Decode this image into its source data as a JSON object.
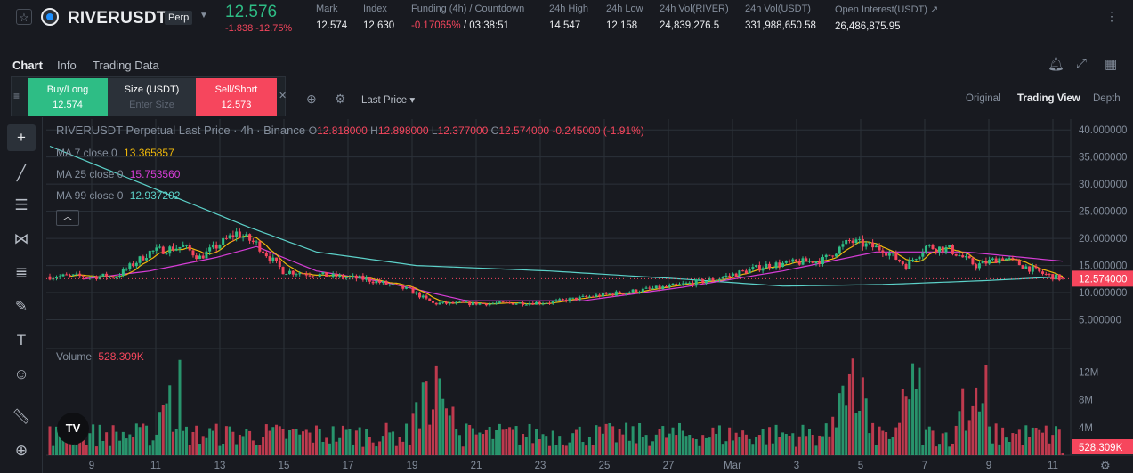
{
  "header": {
    "symbol": "RIVERUSDT",
    "contract_type": "Perp",
    "last_price": "12.576",
    "change": "-1.838 -12.75%",
    "stats": [
      {
        "label": "Mark",
        "value": "12.574",
        "tone": "white"
      },
      {
        "label": "Index",
        "value": "12.630",
        "tone": "white"
      },
      {
        "label": "Funding (4h) / Countdown",
        "value": "-0.17065%",
        "value2": " / 03:38:51",
        "tone": "red"
      },
      {
        "label": "24h High",
        "value": "14.547",
        "tone": "white"
      },
      {
        "label": "24h Low",
        "value": "12.158",
        "tone": "white"
      },
      {
        "label": "24h Vol(RIVER)",
        "value": "24,839,276.5",
        "tone": "white"
      },
      {
        "label": "24h Vol(USDT)",
        "value": "331,988,650.58",
        "tone": "white"
      },
      {
        "label": "Open Interest(USDT)",
        "value": "26,486,875.95",
        "tone": "white"
      }
    ]
  },
  "tabs": [
    "Chart",
    "Info",
    "Trading Data"
  ],
  "quick_trade": {
    "buy_label": "Buy/Long",
    "buy_price": "12.574",
    "size_label": "Size (USDT)",
    "size_placeholder": "Enter Size",
    "sell_label": "Sell/Short",
    "sell_price": "12.573"
  },
  "toolbar": {
    "price_type": "Last Price",
    "views": [
      "Original",
      "Trading View",
      "Depth"
    ],
    "active_view": "Trading View"
  },
  "legend": {
    "title": "RIVERUSDT Perpetual Last Price · 4h · Binance",
    "o": "12.818000",
    "h": "12.898000",
    "l": "12.377000",
    "c": "12.574000",
    "change": "-0.245000 (-1.91%)",
    "ma": [
      {
        "label": "MA 7 close 0",
        "value": "13.365857",
        "color": "#f0b90b"
      },
      {
        "label": "MA 25 close 0",
        "value": "15.753560",
        "color": "#d63dd6"
      },
      {
        "label": "MA 99 close 0",
        "value": "12.937202",
        "color": "#5cd1c9"
      }
    ],
    "volume_label": "Volume",
    "volume_value": "528.309K"
  },
  "colors": {
    "up": "#2ebd85",
    "down": "#f6465d",
    "bg": "#181a20",
    "grid": "#2b3139"
  },
  "chart_data": {
    "type": "candlestick",
    "timeframe": "4h",
    "price_axis": {
      "ticks": [
        "40.000000",
        "35.000000",
        "30.000000",
        "25.000000",
        "20.000000",
        "15.000000",
        "10.000000",
        "5.000000"
      ],
      "range": [
        0,
        42
      ],
      "last_price_label": "12.574000"
    },
    "volume_axis": {
      "ticks": [
        "12M",
        "8M",
        "4M"
      ],
      "range": [
        0,
        15
      ],
      "last_volume_label": "528.309K"
    },
    "x_ticks": [
      "9",
      "11",
      "13",
      "15",
      "17",
      "19",
      "21",
      "23",
      "25",
      "27",
      "Mar",
      "3",
      "5",
      "7",
      "9",
      "11"
    ],
    "price_path_anchors": [
      {
        "bar": 0,
        "price": 13.0
      },
      {
        "bar": 20,
        "price": 13.0
      },
      {
        "bar": 30,
        "price": 17.5
      },
      {
        "bar": 40,
        "price": 18.5
      },
      {
        "bar": 45,
        "price": 16.5
      },
      {
        "bar": 56,
        "price": 21.0
      },
      {
        "bar": 62,
        "price": 19.0
      },
      {
        "bar": 70,
        "price": 14.0
      },
      {
        "bar": 85,
        "price": 13.0
      },
      {
        "bar": 95,
        "price": 12.5
      },
      {
        "bar": 108,
        "price": 10.5
      },
      {
        "bar": 115,
        "price": 8.0
      },
      {
        "bar": 135,
        "price": 8.0
      },
      {
        "bar": 150,
        "price": 8.2
      },
      {
        "bar": 165,
        "price": 9.5
      },
      {
        "bar": 185,
        "price": 11.0
      },
      {
        "bar": 200,
        "price": 12.5
      },
      {
        "bar": 215,
        "price": 15.0
      },
      {
        "bar": 232,
        "price": 16.0
      },
      {
        "bar": 240,
        "price": 19.5
      },
      {
        "bar": 250,
        "price": 18.0
      },
      {
        "bar": 257,
        "price": 15.0
      },
      {
        "bar": 263,
        "price": 18.5
      },
      {
        "bar": 270,
        "price": 18.0
      },
      {
        "bar": 278,
        "price": 15.0
      },
      {
        "bar": 286,
        "price": 16.5
      },
      {
        "bar": 298,
        "price": 13.5
      },
      {
        "bar": 304,
        "price": 12.5
      }
    ],
    "ma25_anchors": [
      {
        "bar": 10,
        "price": 12.5
      },
      {
        "bar": 30,
        "price": 14.0
      },
      {
        "bar": 50,
        "price": 16.5
      },
      {
        "bar": 62,
        "price": 18.5
      },
      {
        "bar": 80,
        "price": 14.0
      },
      {
        "bar": 100,
        "price": 12.0
      },
      {
        "bar": 125,
        "price": 8.5
      },
      {
        "bar": 160,
        "price": 8.5
      },
      {
        "bar": 190,
        "price": 11.0
      },
      {
        "bar": 220,
        "price": 14.0
      },
      {
        "bar": 248,
        "price": 17.5
      },
      {
        "bar": 275,
        "price": 17.5
      },
      {
        "bar": 304,
        "price": 15.8
      }
    ],
    "ma99_anchors": [
      {
        "bar": 0,
        "price": 37.0
      },
      {
        "bar": 20,
        "price": 32.0
      },
      {
        "bar": 40,
        "price": 27.0
      },
      {
        "bar": 60,
        "price": 22.0
      },
      {
        "bar": 80,
        "price": 17.5
      },
      {
        "bar": 110,
        "price": 15.0
      },
      {
        "bar": 150,
        "price": 14.0
      },
      {
        "bar": 190,
        "price": 12.5
      },
      {
        "bar": 220,
        "price": 11.2
      },
      {
        "bar": 250,
        "price": 11.5
      },
      {
        "bar": 280,
        "price": 12.2
      },
      {
        "bar": 304,
        "price": 12.94
      }
    ],
    "last": {
      "o": 12.818,
      "h": 12.898,
      "l": 12.377,
      "c": 12.574
    },
    "bar_count": 305
  }
}
